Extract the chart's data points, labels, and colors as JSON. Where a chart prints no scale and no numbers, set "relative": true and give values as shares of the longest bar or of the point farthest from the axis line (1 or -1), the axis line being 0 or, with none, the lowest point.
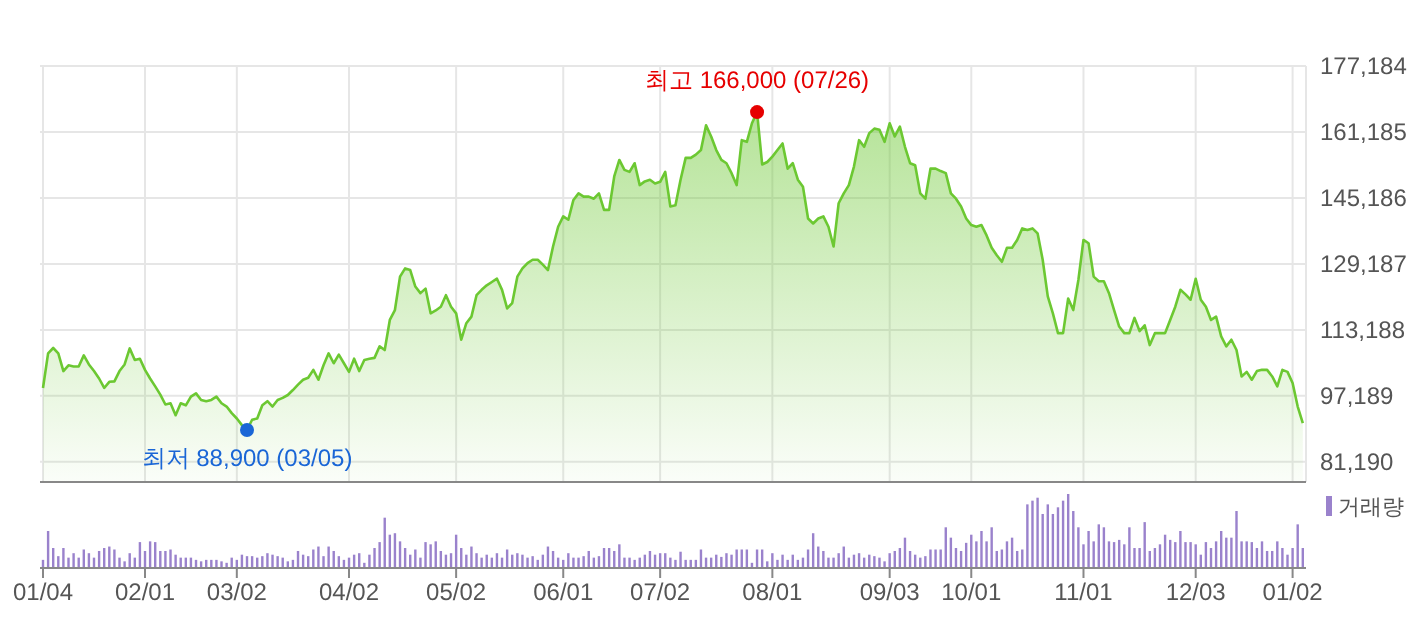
{
  "chart_data": [
    {
      "type": "area",
      "tick_labels": "y",
      "grid": true,
      "categories": [
        null,
        null,
        null,
        null,
        null,
        null,
        null,
        null,
        null,
        null,
        null,
        null,
        null,
        null,
        null,
        null,
        null,
        null,
        null,
        null,
        null,
        null,
        null,
        null,
        null,
        null,
        null,
        null,
        null,
        null,
        null,
        null,
        null,
        null,
        null,
        null,
        null,
        null,
        null,
        null,
        null,
        null,
        null,
        null,
        null,
        null,
        null,
        null,
        null,
        null,
        null,
        null,
        null,
        null,
        null,
        null,
        null,
        null,
        null,
        null,
        null,
        null,
        null,
        null,
        null,
        null,
        null,
        null,
        null,
        null,
        null,
        null,
        null,
        null,
        null,
        null,
        null,
        null,
        null,
        null,
        null,
        null,
        null,
        null,
        null,
        null,
        null,
        null,
        null,
        null,
        null,
        null,
        null,
        null,
        null,
        null,
        null,
        null,
        null,
        null,
        null,
        null,
        null,
        null,
        null,
        null,
        null,
        null,
        null,
        null,
        null,
        null,
        null,
        null,
        null,
        null,
        null,
        null,
        null,
        null,
        null,
        null,
        null,
        null,
        null,
        null,
        null,
        null,
        null,
        null,
        null,
        null,
        null,
        null,
        null,
        null,
        null,
        null,
        null,
        null,
        null,
        null,
        null,
        null,
        null,
        null,
        null,
        null,
        null,
        null,
        null,
        null,
        null,
        null,
        null,
        null,
        null,
        null,
        null,
        null,
        null,
        null,
        null,
        null,
        null,
        null,
        null,
        null,
        null,
        null,
        null,
        null,
        null,
        null,
        null,
        null,
        null,
        null,
        null,
        null,
        null,
        null,
        null,
        null,
        null,
        null,
        null,
        null,
        null,
        null,
        null,
        null,
        null,
        null,
        null,
        null,
        null,
        null,
        null,
        null,
        null,
        null,
        null,
        null,
        null,
        null,
        null,
        null,
        null,
        null,
        null,
        null,
        null,
        null,
        null,
        null,
        null,
        null,
        null,
        null,
        null,
        null,
        null,
        null,
        null,
        null,
        null,
        null,
        null,
        null,
        null,
        null,
        null,
        null,
        null,
        null,
        null,
        null,
        null,
        null,
        null,
        null,
        null,
        null,
        null,
        null,
        null,
        null
      ],
      "series": [
        {
          "color": "#6cc832",
          "values": [
            99100,
            107500,
            108800,
            107500,
            103200,
            104600,
            104300,
            104300,
            107000,
            104800,
            103200,
            101400,
            99100,
            100600,
            100700,
            103200,
            104800,
            108700,
            105900,
            106200,
            103500,
            101400,
            99500,
            97500,
            95100,
            95400,
            92500,
            95400,
            94900,
            97000,
            97800,
            96200,
            95900,
            96200,
            97000,
            95400,
            94600,
            93000,
            91700,
            90100,
            88900,
            91400,
            91700,
            94900,
            95900,
            94600,
            96200,
            96700,
            97400,
            98600,
            99900,
            101100,
            101600,
            103500,
            101100,
            104600,
            107500,
            105100,
            107200,
            105100,
            103000,
            106200,
            103200,
            105900,
            106200,
            106400,
            109200,
            108300,
            115600,
            118000,
            126100,
            128100,
            127700,
            123700,
            122100,
            123200,
            117200,
            117900,
            118800,
            121600,
            118800,
            117200,
            110800,
            114800,
            116400,
            121600,
            122900,
            124000,
            124800,
            125600,
            122900,
            118400,
            119700,
            126100,
            128100,
            129400,
            130200,
            130200,
            129000,
            127700,
            133400,
            138200,
            140700,
            139900,
            144700,
            146300,
            145500,
            145500,
            145000,
            146300,
            142300,
            142300,
            150400,
            154400,
            152000,
            151500,
            153600,
            148300,
            149200,
            149600,
            148700,
            149100,
            151500,
            143100,
            143400,
            149600,
            154900,
            154900,
            155700,
            156800,
            162800,
            160100,
            156800,
            154400,
            153600,
            151200,
            148300,
            159200,
            158800,
            163300,
            166000,
            153300,
            153900,
            155200,
            156800,
            158400,
            152300,
            153600,
            149600,
            147900,
            140200,
            139000,
            140200,
            140700,
            138200,
            133400,
            143900,
            146300,
            148300,
            152800,
            159200,
            157600,
            160900,
            162000,
            161700,
            158800,
            163300,
            160100,
            162500,
            157600,
            153600,
            153100,
            146300,
            145000,
            152300,
            152300,
            151700,
            151200,
            146300,
            145000,
            143100,
            140200,
            138600,
            138200,
            138600,
            136100,
            133100,
            131300,
            129700,
            133100,
            133100,
            135000,
            137800,
            137400,
            137800,
            136600,
            130200,
            121300,
            117200,
            112400,
            112400,
            120800,
            118000,
            125300,
            135000,
            134200,
            126100,
            125000,
            125000,
            122100,
            118000,
            114000,
            112400,
            112400,
            116100,
            112900,
            114300,
            109500,
            112400,
            112400,
            112400,
            115600,
            118800,
            122900,
            121800,
            120500,
            125600,
            120500,
            118800,
            115600,
            116400,
            111600,
            109200,
            110800,
            108300,
            101900,
            103000,
            101100,
            103200,
            103500,
            103500,
            101900,
            99500,
            103500,
            103000,
            100300,
            94600,
            90600
          ]
        }
      ],
      "ylim": [
        76300,
        177184
      ],
      "yticks": [
        {
          "value": 81190,
          "label": "81,190"
        },
        {
          "value": 97189,
          "label": "97,189"
        },
        {
          "value": 113188,
          "label": "113,188"
        },
        {
          "value": 129187,
          "label": "129,187"
        },
        {
          "value": 145186,
          "label": "145,186"
        },
        {
          "value": 161185,
          "label": "161,185"
        },
        {
          "value": 177184,
          "label": "177,184"
        }
      ],
      "annotations": [
        {
          "text": "최고 166,000 (07/26)",
          "y": 166000
        },
        {
          "text": "최저 88,900 (03/05)",
          "y": 88900
        }
      ]
    },
    {
      "type": "bar",
      "relative": true,
      "legend": "top right",
      "categories": [
        "01/04",
        null,
        null,
        null,
        null,
        null,
        null,
        null,
        null,
        null,
        null,
        null,
        null,
        null,
        null,
        null,
        null,
        null,
        null,
        null,
        "02/01",
        null,
        null,
        null,
        null,
        null,
        null,
        null,
        null,
        null,
        null,
        null,
        null,
        null,
        null,
        null,
        null,
        null,
        "03/02",
        null,
        null,
        null,
        null,
        null,
        null,
        null,
        null,
        null,
        null,
        null,
        null,
        null,
        null,
        null,
        null,
        null,
        null,
        null,
        null,
        null,
        "04/02",
        null,
        null,
        null,
        null,
        null,
        null,
        null,
        null,
        null,
        null,
        null,
        null,
        null,
        null,
        null,
        null,
        null,
        null,
        null,
        null,
        "05/02",
        null,
        null,
        null,
        null,
        null,
        null,
        null,
        null,
        null,
        null,
        null,
        null,
        null,
        null,
        null,
        null,
        null,
        null,
        null,
        null,
        "06/01",
        null,
        null,
        null,
        null,
        null,
        null,
        null,
        null,
        null,
        null,
        null,
        null,
        null,
        null,
        null,
        null,
        null,
        null,
        "07/02",
        null,
        null,
        null,
        null,
        null,
        null,
        null,
        null,
        null,
        null,
        null,
        null,
        null,
        null,
        null,
        null,
        null,
        null,
        null,
        null,
        null,
        "08/01",
        null,
        null,
        null,
        null,
        null,
        null,
        null,
        null,
        null,
        null,
        null,
        null,
        null,
        null,
        null,
        null,
        null,
        null,
        null,
        null,
        null,
        null,
        "09/03",
        null,
        null,
        null,
        null,
        null,
        null,
        null,
        null,
        null,
        null,
        null,
        null,
        null,
        null,
        null,
        "10/01",
        null,
        null,
        null,
        null,
        null,
        null,
        null,
        null,
        null,
        null,
        null,
        null,
        null,
        null,
        null,
        null,
        null,
        null,
        null,
        null,
        null,
        "11/01",
        null,
        null,
        null,
        null,
        null,
        null,
        null,
        null,
        null,
        null,
        null,
        null,
        null,
        null,
        null,
        null,
        null,
        null,
        null,
        null,
        null,
        "12/03",
        null,
        null,
        null,
        null,
        null,
        null,
        null,
        null,
        null,
        null,
        null,
        null,
        null,
        null,
        null,
        null,
        null,
        null,
        "01/02",
        null,
        null
      ],
      "series": [
        {
          "name": "거래량",
          "color": "#9a82cc",
          "values": [
            0.11,
            0.5,
            0.27,
            0.16,
            0.27,
            0.14,
            0.2,
            0.14,
            0.25,
            0.2,
            0.14,
            0.23,
            0.27,
            0.29,
            0.25,
            0.14,
            0.09,
            0.2,
            0.14,
            0.35,
            0.23,
            0.36,
            0.35,
            0.23,
            0.23,
            0.25,
            0.18,
            0.14,
            0.14,
            0.14,
            0.11,
            0.09,
            0.11,
            0.11,
            0.11,
            0.09,
            0.07,
            0.14,
            0.11,
            0.18,
            0.16,
            0.16,
            0.14,
            0.16,
            0.2,
            0.18,
            0.16,
            0.14,
            0.09,
            0.11,
            0.23,
            0.18,
            0.16,
            0.25,
            0.29,
            0.16,
            0.29,
            0.23,
            0.16,
            0.11,
            0.14,
            0.18,
            0.2,
            0.07,
            0.18,
            0.27,
            0.35,
            0.68,
            0.45,
            0.47,
            0.36,
            0.27,
            0.18,
            0.25,
            0.14,
            0.35,
            0.32,
            0.36,
            0.23,
            0.18,
            0.2,
            0.45,
            0.27,
            0.18,
            0.29,
            0.2,
            0.14,
            0.18,
            0.14,
            0.2,
            0.14,
            0.25,
            0.18,
            0.2,
            0.18,
            0.14,
            0.16,
            0.11,
            0.18,
            0.29,
            0.23,
            0.14,
            0.11,
            0.2,
            0.14,
            0.14,
            0.16,
            0.23,
            0.14,
            0.16,
            0.27,
            0.27,
            0.23,
            0.32,
            0.14,
            0.14,
            0.11,
            0.14,
            0.18,
            0.23,
            0.18,
            0.2,
            0.2,
            0.14,
            0.11,
            0.22,
            0.11,
            0.11,
            0.11,
            0.25,
            0.14,
            0.14,
            0.18,
            0.15,
            0.2,
            0.18,
            0.25,
            0.25,
            0.25,
            0.07,
            0.25,
            0.25,
            0.09,
            0.2,
            0.11,
            0.18,
            0.11,
            0.18,
            0.11,
            0.14,
            0.25,
            0.47,
            0.29,
            0.23,
            0.14,
            0.14,
            0.2,
            0.29,
            0.14,
            0.18,
            0.2,
            0.14,
            0.18,
            0.16,
            0.14,
            0.09,
            0.2,
            0.23,
            0.27,
            0.41,
            0.23,
            0.18,
            0.14,
            0.16,
            0.25,
            0.25,
            0.25,
            0.55,
            0.41,
            0.27,
            0.23,
            0.34,
            0.45,
            0.36,
            0.5,
            0.36,
            0.55,
            0.23,
            0.25,
            0.36,
            0.41,
            0.23,
            0.25,
            0.86,
            0.91,
            0.95,
            0.73,
            0.86,
            0.73,
            0.82,
            0.91,
            1,
            0.77,
            0.55,
            0.32,
            0.5,
            0.36,
            0.59,
            0.55,
            0.36,
            0.35,
            0.38,
            0.32,
            0.55,
            0.27,
            0.27,
            0.62,
            0.23,
            0.27,
            0.32,
            0.45,
            0.38,
            0.35,
            0.5,
            0.35,
            0.35,
            0.32,
            0.18,
            0.35,
            0.27,
            0.36,
            0.5,
            0.41,
            0.41,
            0.77,
            0.36,
            0.36,
            0.35,
            0.27,
            0.36,
            0.23,
            0.23,
            0.36,
            0.27,
            0.18,
            0.27,
            0.59,
            0.27
          ]
        }
      ]
    }
  ]
}
